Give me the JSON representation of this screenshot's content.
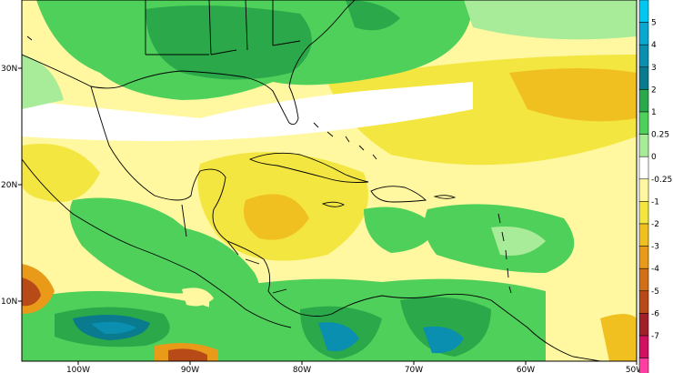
{
  "lat_labels": [
    "30N",
    "20N",
    "10N"
  ],
  "lon_labels": [
    "100W",
    "90W",
    "80W",
    "70W",
    "60W",
    "50W"
  ],
  "colorbar": [
    {
      "label": "",
      "color": "#00c8f0"
    },
    {
      "label": "5",
      "color": "#0aa8d0"
    },
    {
      "label": "4",
      "color": "#0a8fb0"
    },
    {
      "label": "3",
      "color": "#0a7a8f"
    },
    {
      "label": "2",
      "color": "#2aa84a"
    },
    {
      "label": "1",
      "color": "#4fd05a"
    },
    {
      "label": "0.25",
      "color": "#a8ec9a"
    },
    {
      "label": "0",
      "color": "#ffffff"
    },
    {
      "label": "-0.25",
      "color": "#fff8a0"
    },
    {
      "label": "-1",
      "color": "#f4e640"
    },
    {
      "label": "-2",
      "color": "#f0c020"
    },
    {
      "label": "-3",
      "color": "#e89a18"
    },
    {
      "label": "-4",
      "color": "#d07018"
    },
    {
      "label": "-5",
      "color": "#b84a18"
    },
    {
      "label": "-6",
      "color": "#a0202a"
    },
    {
      "label": "-7",
      "color": "#d01060"
    },
    {
      "label": "",
      "color": "#ff40a0"
    }
  ]
}
